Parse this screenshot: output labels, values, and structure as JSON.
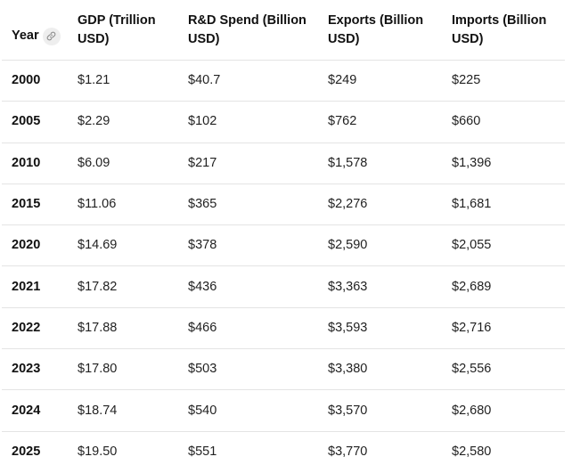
{
  "table": {
    "headers": [
      "Year",
      "GDP (Trillion USD)",
      "R&D Spend (Billion USD)",
      "Exports (Billion USD)",
      "Imports (Billion USD)"
    ],
    "rows": [
      [
        "2000",
        "$1.21",
        "$40.7",
        "$249",
        "$225"
      ],
      [
        "2005",
        "$2.29",
        "$102",
        "$762",
        "$660"
      ],
      [
        "2010",
        "$6.09",
        "$217",
        "$1,578",
        "$1,396"
      ],
      [
        "2015",
        "$11.06",
        "$365",
        "$2,276",
        "$1,681"
      ],
      [
        "2020",
        "$14.69",
        "$378",
        "$2,590",
        "$2,055"
      ],
      [
        "2021",
        "$17.82",
        "$436",
        "$3,363",
        "$2,689"
      ],
      [
        "2022",
        "$17.88",
        "$466",
        "$3,593",
        "$2,716"
      ],
      [
        "2023",
        "$17.80",
        "$503",
        "$3,380",
        "$2,556"
      ],
      [
        "2024",
        "$18.74",
        "$540",
        "$3,570",
        "$2,680"
      ],
      [
        "2025",
        "$19.50",
        "$551",
        "$3,770",
        "$2,580"
      ]
    ]
  },
  "icons": {
    "year_header_icon": "link-icon"
  }
}
